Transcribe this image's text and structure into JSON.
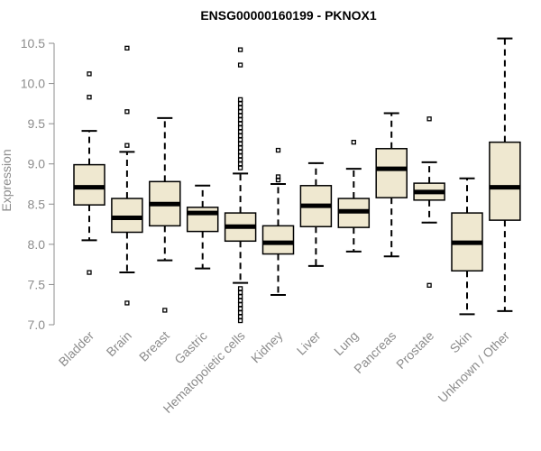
{
  "chart_data": {
    "type": "boxplot",
    "title": "ENSG00000160199 - PKNOX1",
    "ylabel": "Expression",
    "xlabel": "",
    "ylim": [
      7.0,
      10.55
    ],
    "yticks": [
      "7.0",
      "7.5",
      "8.0",
      "8.5",
      "9.0",
      "9.5",
      "10.0",
      "10.5"
    ],
    "ytick_values": [
      7.0,
      7.5,
      8.0,
      8.5,
      9.0,
      9.5,
      10.0,
      10.5
    ],
    "colors": {
      "box_fill": "#efe8d0",
      "stroke": "#000000",
      "axis": "#8c8c8c",
      "title": "#000000"
    },
    "categories": [
      "Bladder",
      "Brain",
      "Breast",
      "Gastric",
      "Hematopoietic cells",
      "Kidney",
      "Liver",
      "Lung",
      "Pancreas",
      "Prostate",
      "Skin",
      "Unknown / Other"
    ],
    "boxes": [
      {
        "name": "Bladder",
        "q1": 8.49,
        "median": 8.71,
        "q3": 8.99,
        "whisker_low": 8.05,
        "whisker_high": 9.41,
        "outliers": [
          7.65,
          9.83,
          10.12
        ]
      },
      {
        "name": "Brain",
        "q1": 8.15,
        "median": 8.33,
        "q3": 8.57,
        "whisker_low": 7.65,
        "whisker_high": 9.15,
        "outliers": [
          7.27,
          9.23,
          9.65,
          10.44
        ]
      },
      {
        "name": "Breast",
        "q1": 8.23,
        "median": 8.5,
        "q3": 8.78,
        "whisker_low": 7.8,
        "whisker_high": 9.57,
        "outliers": [
          7.18
        ]
      },
      {
        "name": "Gastric",
        "q1": 8.16,
        "median": 8.39,
        "q3": 8.46,
        "whisker_low": 7.7,
        "whisker_high": 8.73,
        "outliers": []
      },
      {
        "name": "Hematopoietic cells",
        "q1": 8.04,
        "median": 8.22,
        "q3": 8.39,
        "whisker_low": 7.52,
        "whisker_high": 8.88,
        "outliers": [
          7.05,
          7.1,
          7.15,
          7.2,
          7.25,
          7.3,
          7.35,
          7.4,
          7.45,
          8.95,
          9.0,
          9.05,
          9.1,
          9.15,
          9.2,
          9.25,
          9.3,
          9.35,
          9.4,
          9.45,
          9.5,
          9.55,
          9.6,
          9.65,
          9.7,
          9.75,
          9.8,
          10.23,
          10.42
        ]
      },
      {
        "name": "Kidney",
        "q1": 7.88,
        "median": 8.02,
        "q3": 8.23,
        "whisker_low": 7.37,
        "whisker_high": 8.75,
        "outliers": [
          8.8,
          8.84,
          9.17
        ]
      },
      {
        "name": "Liver",
        "q1": 8.22,
        "median": 8.48,
        "q3": 8.73,
        "whisker_low": 7.73,
        "whisker_high": 9.01,
        "outliers": []
      },
      {
        "name": "Lung",
        "q1": 8.21,
        "median": 8.41,
        "q3": 8.57,
        "whisker_low": 7.91,
        "whisker_high": 8.94,
        "outliers": [
          9.27
        ]
      },
      {
        "name": "Pancreas",
        "q1": 8.58,
        "median": 8.94,
        "q3": 9.19,
        "whisker_low": 7.85,
        "whisker_high": 9.63,
        "outliers": []
      },
      {
        "name": "Prostate",
        "q1": 8.55,
        "median": 8.65,
        "q3": 8.76,
        "whisker_low": 8.27,
        "whisker_high": 9.02,
        "outliers": [
          7.49,
          9.56
        ]
      },
      {
        "name": "Skin",
        "q1": 7.67,
        "median": 8.02,
        "q3": 8.39,
        "whisker_low": 7.13,
        "whisker_high": 8.82,
        "outliers": []
      },
      {
        "name": "Unknown / Other",
        "q1": 8.3,
        "median": 8.71,
        "q3": 9.27,
        "whisker_low": 7.17,
        "whisker_high": 10.56,
        "outliers": []
      }
    ]
  }
}
